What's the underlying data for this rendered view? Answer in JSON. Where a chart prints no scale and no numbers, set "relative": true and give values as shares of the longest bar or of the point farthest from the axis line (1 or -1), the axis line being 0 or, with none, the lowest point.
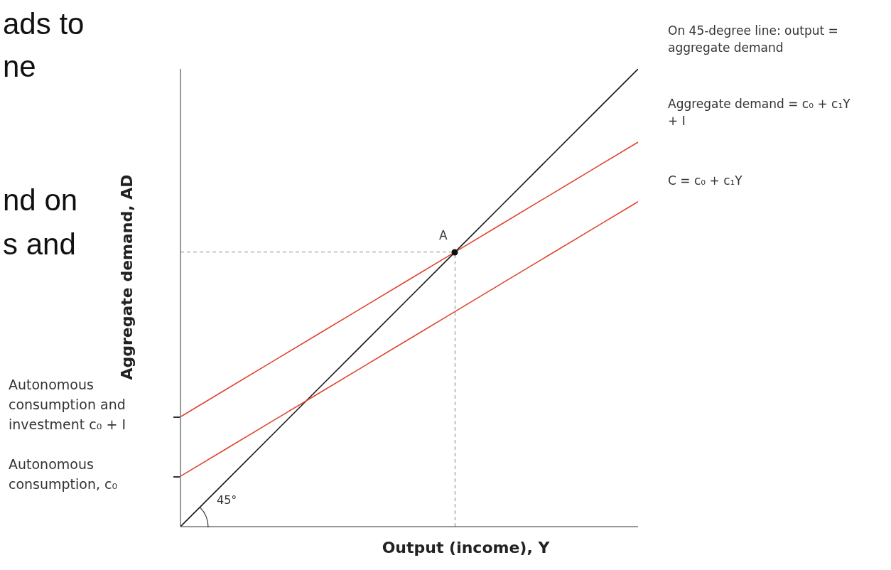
{
  "chart_data": {
    "type": "line",
    "relative": true,
    "xlabel": "Output (income), Y",
    "ylabel": "Aggregate demand, AD",
    "categories": [
      null,
      null,
      null,
      null,
      null,
      null,
      null,
      null,
      null,
      null,
      null
    ],
    "series": [
      {
        "name": "On 45-degree line: output = aggregate demand",
        "color": "#1a1a1a",
        "values": [
          0,
          0.1,
          0.2,
          0.3,
          0.4,
          0.5,
          0.6,
          0.7,
          0.8,
          0.9,
          1
        ]
      },
      {
        "name": "Aggregate demand = c₀ + c₁Y + I",
        "color": "#e0452f",
        "values": [
          0.24,
          0.3,
          0.36,
          0.42,
          0.48,
          0.54,
          0.6,
          0.66,
          0.72,
          0.78,
          0.84
        ]
      },
      {
        "name": "C = c₀ + c₁Y",
        "color": "#e0452f",
        "values": [
          0.11,
          0.17,
          0.23,
          0.29,
          0.35,
          0.41,
          0.47,
          0.53,
          0.59,
          0.65,
          0.71
        ]
      }
    ],
    "ref_lines": [
      {
        "axis": "y",
        "value": 0.6,
        "color": "#888888",
        "line_style": "dashed"
      }
    ],
    "annotations": [
      "ads to",
      "ne",
      "nd on",
      "s and",
      "45°",
      "A",
      "Autonomous consumption and investment c₀ + I",
      "Autonomous consumption, c₀"
    ]
  }
}
